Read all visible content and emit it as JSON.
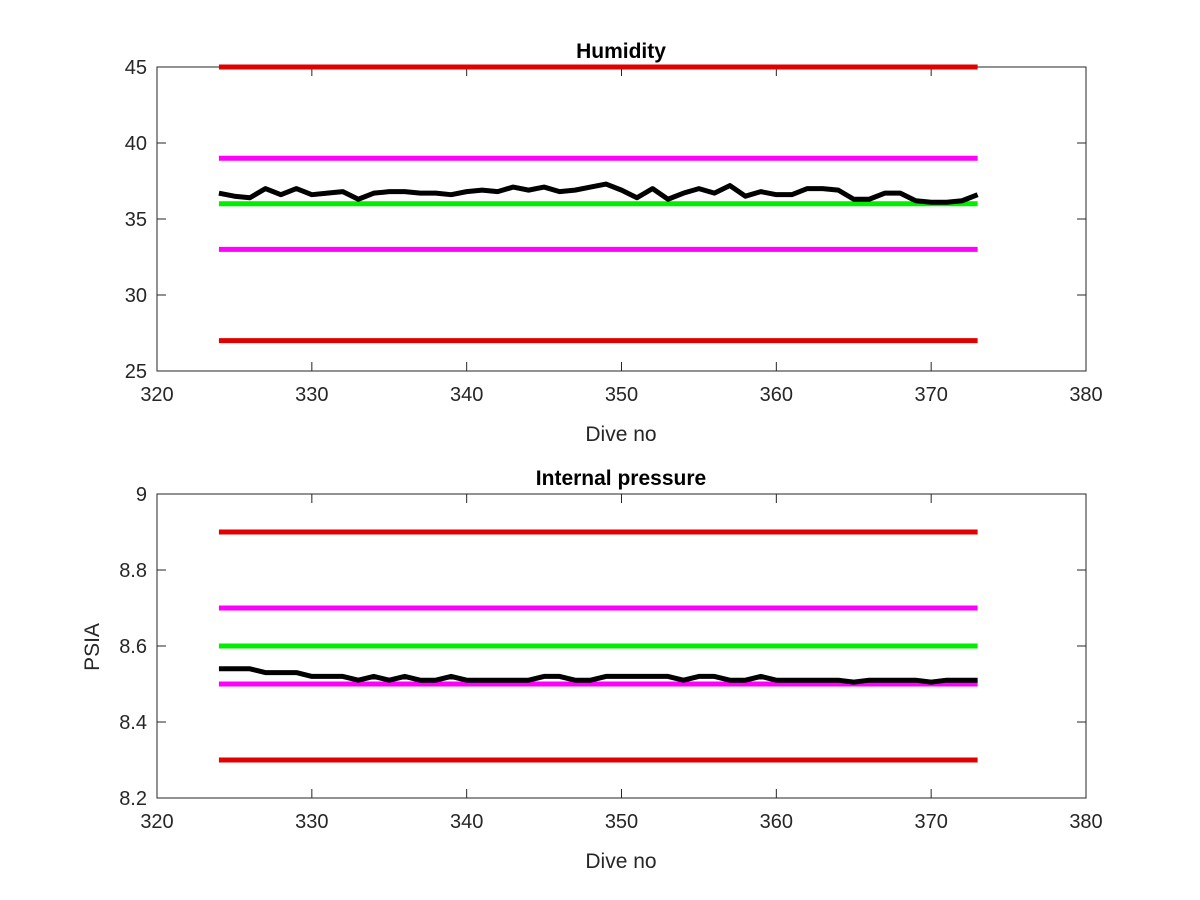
{
  "chart_data": [
    {
      "type": "line",
      "title": "Humidity",
      "xlabel": "Dive no",
      "ylabel": "",
      "xlim": [
        320,
        380
      ],
      "ylim": [
        25,
        45
      ],
      "xticks": [
        320,
        330,
        340,
        350,
        360,
        370,
        380
      ],
      "yticks": [
        25,
        30,
        35,
        40,
        45
      ],
      "grid": false,
      "series": [
        {
          "color": "#e00000",
          "x": [
            324,
            373
          ],
          "y": [
            45,
            45
          ]
        },
        {
          "color": "#ff00ff",
          "x": [
            324,
            373
          ],
          "y": [
            39,
            39
          ]
        },
        {
          "color": "#00ee00",
          "x": [
            324,
            373
          ],
          "y": [
            36,
            36
          ]
        },
        {
          "color": "#ff00ff",
          "x": [
            324,
            373
          ],
          "y": [
            33,
            33
          ]
        },
        {
          "color": "#e00000",
          "x": [
            324,
            373
          ],
          "y": [
            27,
            27
          ]
        },
        {
          "color": "#000000",
          "x": [
            324,
            325,
            326,
            327,
            328,
            329,
            330,
            331,
            332,
            333,
            334,
            335,
            336,
            337,
            338,
            339,
            340,
            341,
            342,
            343,
            344,
            345,
            346,
            347,
            348,
            349,
            350,
            351,
            352,
            353,
            354,
            355,
            356,
            357,
            358,
            359,
            360,
            361,
            362,
            363,
            364,
            365,
            366,
            367,
            368,
            369,
            370,
            371,
            372,
            373
          ],
          "y": [
            36.7,
            36.5,
            36.4,
            37.0,
            36.6,
            37.0,
            36.6,
            36.7,
            36.8,
            36.3,
            36.7,
            36.8,
            36.8,
            36.7,
            36.7,
            36.6,
            36.8,
            36.9,
            36.8,
            37.1,
            36.9,
            37.1,
            36.8,
            36.9,
            37.1,
            37.3,
            36.9,
            36.4,
            37.0,
            36.3,
            36.7,
            37.0,
            36.7,
            37.2,
            36.5,
            36.8,
            36.6,
            36.6,
            37.0,
            37.0,
            36.9,
            36.3,
            36.3,
            36.7,
            36.7,
            36.2,
            36.1,
            36.1,
            36.2,
            36.6
          ]
        }
      ]
    },
    {
      "type": "line",
      "title": "Internal pressure",
      "xlabel": "Dive no",
      "ylabel": "PSIA",
      "xlim": [
        320,
        380
      ],
      "ylim": [
        8.2,
        9
      ],
      "xticks": [
        320,
        330,
        340,
        350,
        360,
        370,
        380
      ],
      "yticks": [
        "8.2",
        "8.4",
        "8.6",
        "8.8",
        "9"
      ],
      "grid": false,
      "series": [
        {
          "color": "#e00000",
          "x": [
            324,
            373
          ],
          "y": [
            8.9,
            8.9
          ]
        },
        {
          "color": "#ff00ff",
          "x": [
            324,
            373
          ],
          "y": [
            8.7,
            8.7
          ]
        },
        {
          "color": "#00ee00",
          "x": [
            324,
            373
          ],
          "y": [
            8.6,
            8.6
          ]
        },
        {
          "color": "#ff00ff",
          "x": [
            324,
            373
          ],
          "y": [
            8.5,
            8.5
          ]
        },
        {
          "color": "#e00000",
          "x": [
            324,
            373
          ],
          "y": [
            8.3,
            8.3
          ]
        },
        {
          "color": "#000000",
          "x": [
            324,
            325,
            326,
            327,
            328,
            329,
            330,
            331,
            332,
            333,
            334,
            335,
            336,
            337,
            338,
            339,
            340,
            341,
            342,
            343,
            344,
            345,
            346,
            347,
            348,
            349,
            350,
            351,
            352,
            353,
            354,
            355,
            356,
            357,
            358,
            359,
            360,
            361,
            362,
            363,
            364,
            365,
            366,
            367,
            368,
            369,
            370,
            371,
            372,
            373
          ],
          "y": [
            8.54,
            8.54,
            8.54,
            8.53,
            8.53,
            8.53,
            8.52,
            8.52,
            8.52,
            8.51,
            8.52,
            8.51,
            8.52,
            8.51,
            8.51,
            8.52,
            8.51,
            8.51,
            8.51,
            8.51,
            8.51,
            8.52,
            8.52,
            8.51,
            8.51,
            8.52,
            8.52,
            8.52,
            8.52,
            8.52,
            8.51,
            8.52,
            8.52,
            8.51,
            8.51,
            8.52,
            8.51,
            8.51,
            8.51,
            8.51,
            8.51,
            8.505,
            8.51,
            8.51,
            8.51,
            8.51,
            8.505,
            8.51,
            8.51,
            8.51
          ]
        }
      ]
    }
  ]
}
